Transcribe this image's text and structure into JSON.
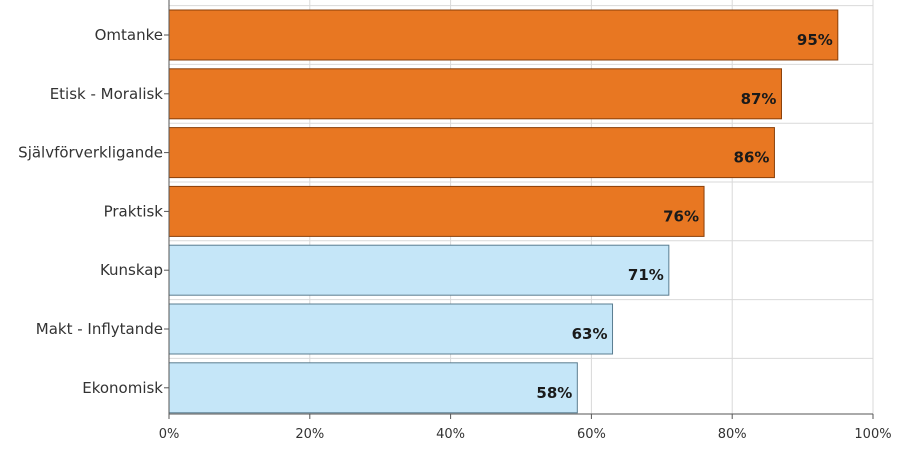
{
  "chart_data": {
    "type": "bar",
    "orientation": "horizontal",
    "title": "",
    "xlabel": "",
    "ylabel": "",
    "categories": [
      "Omtanke",
      "Etisk - Moralisk",
      "Självförverkligande",
      "Praktisk",
      "Kunskap",
      "Makt - Inflytande",
      "Ekonomisk"
    ],
    "values": [
      95,
      87,
      86,
      76,
      71,
      63,
      58
    ],
    "value_labels": [
      "95%",
      "87%",
      "86%",
      "76%",
      "71%",
      "63%",
      "58%"
    ],
    "highlight": [
      true,
      true,
      true,
      true,
      false,
      false,
      false
    ],
    "xlim": [
      0,
      100
    ],
    "x_ticks": [
      0,
      20,
      40,
      60,
      80,
      100
    ],
    "x_tick_labels": [
      "0%",
      "20%",
      "40%",
      "60%",
      "80%",
      "100%"
    ],
    "grid": true,
    "legend": "none",
    "colors": {
      "highlight_fill": "#E87722",
      "highlight_stroke": "#8a3f08",
      "normal_fill": "#C5E6F8",
      "normal_stroke": "#5a7d90",
      "grid": "#d9d9d9",
      "axis": "#555555"
    }
  }
}
